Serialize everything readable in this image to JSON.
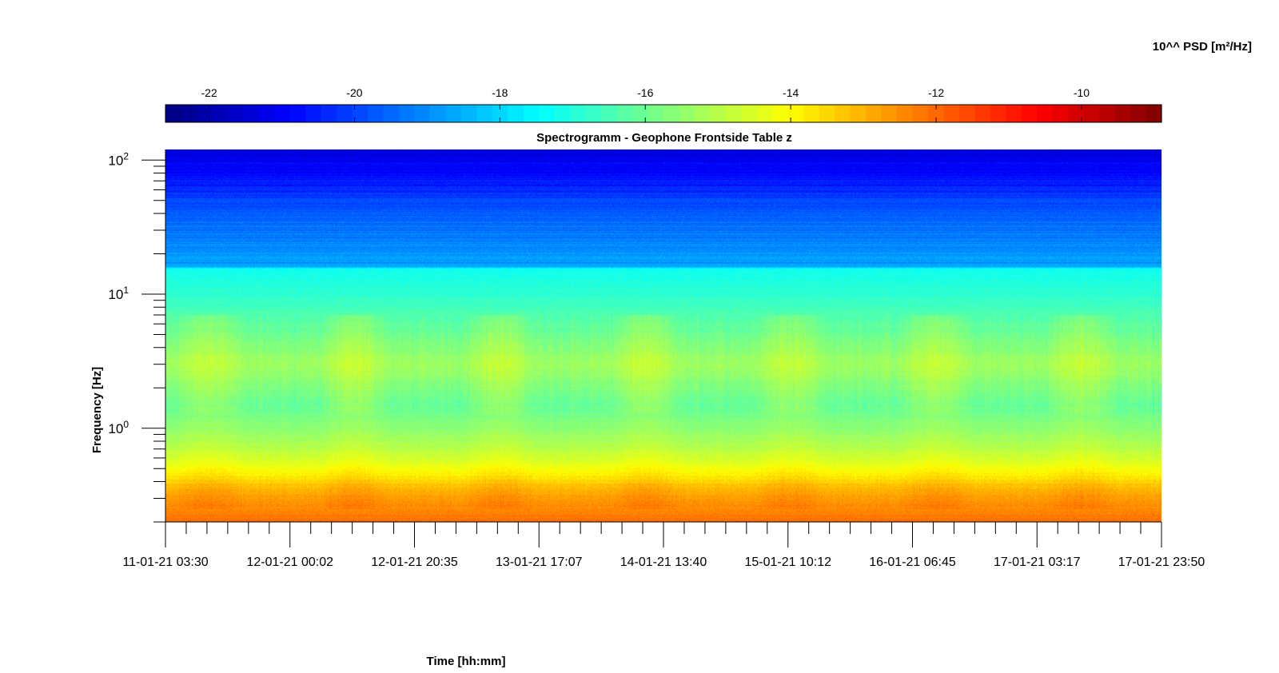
{
  "chart_data": {
    "type": "heatmap",
    "title": "Spectrogramm - Geophone Frontside Table z",
    "xlabel": "Time [hh:mm]",
    "ylabel": "Frequency [Hz]",
    "colorbar_label": "10^^ PSD [m²/Hz]",
    "colormap": "jet",
    "color_range": [
      -22.6,
      -8.9
    ],
    "colorbar_ticks": [
      -22,
      -20,
      -18,
      -16,
      -14,
      -12,
      -10
    ],
    "y_scale": "log",
    "ylim": [
      0.2,
      120
    ],
    "y_ticks": [
      {
        "base": "10",
        "exp": "2",
        "value": 100
      },
      {
        "base": "10",
        "exp": "1",
        "value": 10
      },
      {
        "base": "10",
        "exp": "0",
        "value": 1
      }
    ],
    "x_range_labels": [
      "11-01-21 03:30",
      "17-01-21 23:50"
    ],
    "x_ticks": [
      "11-01-21 03:30",
      "12-01-21 00:02",
      "12-01-21 20:35",
      "13-01-21 17:07",
      "14-01-21 13:40",
      "15-01-21 10:12",
      "16-01-21 06:45",
      "17-01-21 03:17",
      "17-01-21 23:50"
    ],
    "minor_x_ticks_per_interval": 5,
    "psd_profile_by_frequency": [
      {
        "freq_hz": 120,
        "log_psd": -21.3
      },
      {
        "freq_hz": 60,
        "log_psd": -20.4
      },
      {
        "freq_hz": 40,
        "log_psd": -19.6
      },
      {
        "freq_hz": 16,
        "log_psd": -18.7
      },
      {
        "freq_hz": 15.5,
        "log_psd": -17.3
      },
      {
        "freq_hz": 8,
        "log_psd": -16.6
      },
      {
        "freq_hz": 3,
        "log_psd": -15.3
      },
      {
        "freq_hz": 1.5,
        "log_psd": -16.1
      },
      {
        "freq_hz": 1.0,
        "log_psd": -15.6
      },
      {
        "freq_hz": 0.7,
        "log_psd": -15.0
      },
      {
        "freq_hz": 0.5,
        "log_psd": -14.2
      },
      {
        "freq_hz": 0.35,
        "log_psd": -13.0
      },
      {
        "freq_hz": 0.2,
        "log_psd": -12.1
      }
    ],
    "grid": false
  }
}
